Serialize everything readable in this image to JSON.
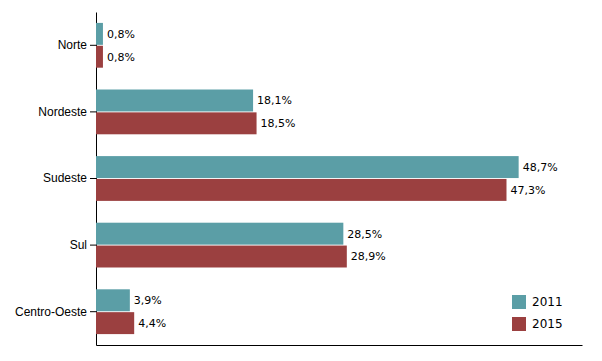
{
  "chart_data": {
    "type": "bar",
    "orientation": "horizontal",
    "categories": [
      "Norte",
      "Nordeste",
      "Sudeste",
      "Sul",
      "Centro-Oeste"
    ],
    "series": [
      {
        "name": "2011",
        "color": "#5b9ea6",
        "values": [
          0.8,
          18.1,
          48.7,
          28.5,
          3.9
        ],
        "value_labels": [
          "0,8%",
          "18,1%",
          "48,7%",
          "28,5%",
          "3,9%"
        ]
      },
      {
        "name": "2015",
        "color": "#9b4040",
        "values": [
          0.8,
          18.5,
          47.3,
          28.9,
          4.4
        ],
        "value_labels": [
          "0,8%",
          "18,5%",
          "47,3%",
          "28,9%",
          "4,4%"
        ]
      }
    ],
    "xlim": [
      0,
      56
    ],
    "data_labels": true,
    "tick_labels": "y",
    "legend": "lower right",
    "grid": false
  }
}
